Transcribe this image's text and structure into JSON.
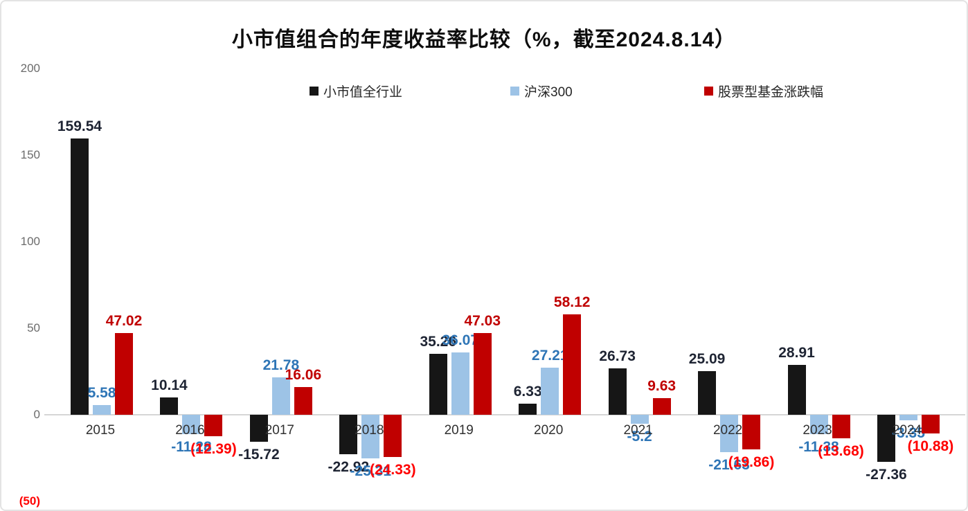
{
  "title": "小市值组合的年度收益率比较（%，截至2024.8.14）",
  "chart_data": {
    "type": "bar",
    "title": "小市值组合的年度收益率比较（%，截至2024.8.14）",
    "categories": [
      "2015",
      "2016",
      "2017",
      "2018",
      "2019",
      "2020",
      "2021",
      "2022",
      "2023",
      "2024"
    ],
    "series": [
      {
        "name": "小市值全行业",
        "color": "#161616",
        "label_color": "#1e2433",
        "values": [
          159.54,
          10.14,
          -15.72,
          -22.92,
          35.26,
          6.33,
          26.73,
          25.09,
          28.91,
          -27.36
        ],
        "labels": [
          "159.54",
          "10.14",
          "-15.72",
          "-22.92",
          "35.26",
          "6.33",
          "26.73",
          "25.09",
          "28.91",
          "-27.36"
        ]
      },
      {
        "name": "沪深300",
        "color": "#9dc3e6",
        "label_color": "#2e75b6",
        "values": [
          5.58,
          -11.28,
          21.78,
          -25.31,
          36.07,
          27.21,
          -5.2,
          -21.63,
          -11.38,
          -3.35
        ],
        "labels": [
          "5.58",
          "-11.28",
          "21.78",
          "-25.31",
          "36.07",
          "27.21",
          "-5.2",
          "-21.63",
          "-11.38",
          "-3.35"
        ]
      },
      {
        "name": "股票型基金涨跌幅",
        "color": "#c00000",
        "label_color": "#c00000",
        "negative_label_color": "#ff0000",
        "values": [
          47.02,
          -12.39,
          16.06,
          -24.33,
          47.03,
          58.12,
          9.63,
          -19.86,
          -13.68,
          -10.88
        ],
        "labels": [
          "47.02",
          "(12.39)",
          "16.06",
          "(24.33)",
          "47.03",
          "58.12",
          "9.63",
          "(19.86)",
          "(13.68)",
          "(10.88)"
        ]
      }
    ],
    "y_axis": {
      "ticks": [
        {
          "label": "200",
          "value": 200,
          "color": "#6b6b6b"
        },
        {
          "label": "150",
          "value": 150,
          "color": "#6b6b6b"
        },
        {
          "label": "100",
          "value": 100,
          "color": "#6b6b6b"
        },
        {
          "label": "50",
          "value": 50,
          "color": "#6b6b6b"
        },
        {
          "label": "0",
          "value": 0,
          "color": "#6b6b6b"
        },
        {
          "label": "(50)",
          "value": -50,
          "color": "#ff0000"
        }
      ],
      "range": [
        -50,
        200
      ]
    },
    "grid": false,
    "legend_position": "top"
  }
}
